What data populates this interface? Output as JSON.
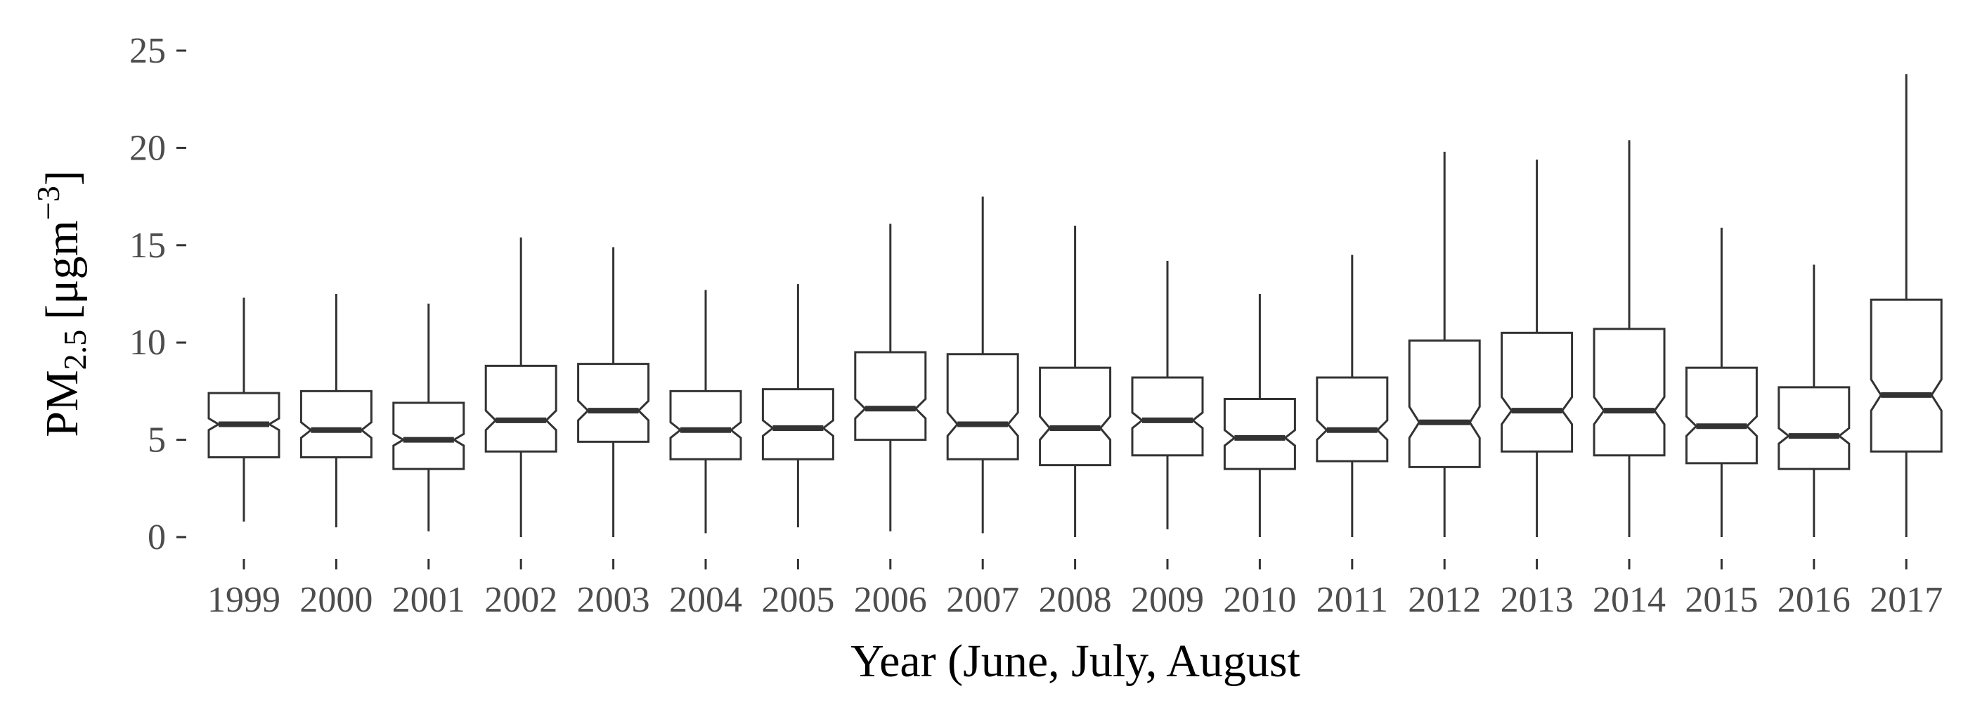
{
  "chart_data": {
    "type": "boxplot",
    "notched": true,
    "title": "",
    "xlabel": "Year (June, July, August",
    "ylabel_main": "PM",
    "ylabel_sub": "2.5",
    "ylabel_units_open": "[μgm",
    "ylabel_units_sup": "−3",
    "ylabel_units_close": "]",
    "ylim": [
      0,
      25
    ],
    "yticks": [
      {
        "value": 0,
        "label": "0"
      },
      {
        "value": 5,
        "label": "5"
      },
      {
        "value": 10,
        "label": "10"
      },
      {
        "value": 15,
        "label": "15"
      },
      {
        "value": 20,
        "label": "20"
      },
      {
        "value": 25,
        "label": "25"
      }
    ],
    "grid": false,
    "boxes": [
      {
        "year": "1999",
        "whisker_low": 0.8,
        "q1": 4.1,
        "median": 5.8,
        "q3": 7.4,
        "whisker_high": 12.3,
        "notch": [
          5.5,
          6.1
        ]
      },
      {
        "year": "2000",
        "whisker_low": 0.5,
        "q1": 4.1,
        "median": 5.5,
        "q3": 7.5,
        "whisker_high": 12.5,
        "notch": [
          5.1,
          5.9
        ]
      },
      {
        "year": "2001",
        "whisker_low": 0.3,
        "q1": 3.5,
        "median": 5.0,
        "q3": 6.9,
        "whisker_high": 12.0,
        "notch": [
          4.7,
          5.3
        ]
      },
      {
        "year": "2002",
        "whisker_low": 0.0,
        "q1": 4.4,
        "median": 6.0,
        "q3": 8.8,
        "whisker_high": 15.4,
        "notch": [
          5.5,
          6.5
        ]
      },
      {
        "year": "2003",
        "whisker_low": 0.0,
        "q1": 4.9,
        "median": 6.5,
        "q3": 8.9,
        "whisker_high": 14.9,
        "notch": [
          6.0,
          7.0
        ]
      },
      {
        "year": "2004",
        "whisker_low": 0.2,
        "q1": 4.0,
        "median": 5.5,
        "q3": 7.5,
        "whisker_high": 12.7,
        "notch": [
          5.1,
          5.9
        ]
      },
      {
        "year": "2005",
        "whisker_low": 0.5,
        "q1": 4.0,
        "median": 5.6,
        "q3": 7.6,
        "whisker_high": 13.0,
        "notch": [
          5.2,
          6.0
        ]
      },
      {
        "year": "2006",
        "whisker_low": 0.3,
        "q1": 5.0,
        "median": 6.6,
        "q3": 9.5,
        "whisker_high": 16.1,
        "notch": [
          6.1,
          7.1
        ]
      },
      {
        "year": "2007",
        "whisker_low": 0.2,
        "q1": 4.0,
        "median": 5.8,
        "q3": 9.4,
        "whisker_high": 17.5,
        "notch": [
          5.2,
          6.4
        ]
      },
      {
        "year": "2008",
        "whisker_low": 0.0,
        "q1": 3.7,
        "median": 5.6,
        "q3": 8.7,
        "whisker_high": 16.0,
        "notch": [
          5.0,
          6.2
        ]
      },
      {
        "year": "2009",
        "whisker_low": 0.4,
        "q1": 4.2,
        "median": 6.0,
        "q3": 8.2,
        "whisker_high": 14.2,
        "notch": [
          5.6,
          6.4
        ]
      },
      {
        "year": "2010",
        "whisker_low": 0.0,
        "q1": 3.5,
        "median": 5.1,
        "q3": 7.1,
        "whisker_high": 12.5,
        "notch": [
          4.7,
          5.5
        ]
      },
      {
        "year": "2011",
        "whisker_low": 0.0,
        "q1": 3.9,
        "median": 5.5,
        "q3": 8.2,
        "whisker_high": 14.5,
        "notch": [
          5.0,
          6.0
        ]
      },
      {
        "year": "2012",
        "whisker_low": 0.0,
        "q1": 3.6,
        "median": 5.9,
        "q3": 10.1,
        "whisker_high": 19.8,
        "notch": [
          5.1,
          6.7
        ]
      },
      {
        "year": "2013",
        "whisker_low": 0.0,
        "q1": 4.4,
        "median": 6.5,
        "q3": 10.5,
        "whisker_high": 19.4,
        "notch": [
          5.8,
          7.2
        ]
      },
      {
        "year": "2014",
        "whisker_low": 0.0,
        "q1": 4.2,
        "median": 6.5,
        "q3": 10.7,
        "whisker_high": 20.4,
        "notch": [
          5.8,
          7.2
        ]
      },
      {
        "year": "2015",
        "whisker_low": 0.0,
        "q1": 3.8,
        "median": 5.7,
        "q3": 8.7,
        "whisker_high": 15.9,
        "notch": [
          5.2,
          6.2
        ]
      },
      {
        "year": "2016",
        "whisker_low": 0.0,
        "q1": 3.5,
        "median": 5.2,
        "q3": 7.7,
        "whisker_high": 14.0,
        "notch": [
          4.8,
          5.6
        ]
      },
      {
        "year": "2017",
        "whisker_low": 0.0,
        "q1": 4.4,
        "median": 7.3,
        "q3": 12.2,
        "whisker_high": 23.8,
        "notch": [
          6.5,
          8.1
        ]
      }
    ]
  }
}
